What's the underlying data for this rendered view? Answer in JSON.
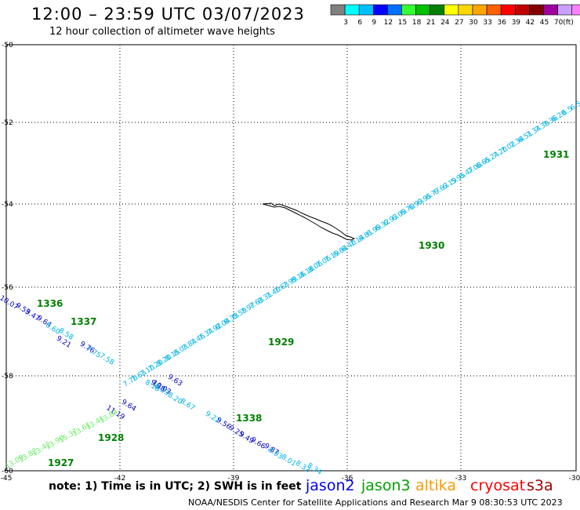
{
  "header": {
    "title": "12:00 – 23:59 UTC 03/07/2023",
    "subtitle": "12 hour collection of altimeter wave heights"
  },
  "legend": {
    "unit": "(ft)",
    "colors": [
      "#808080",
      "#00ffff",
      "#00bfff",
      "#0000ff",
      "#0070ff",
      "#33ff33",
      "#00c000",
      "#008000",
      "#ffff00",
      "#ffd700",
      "#ffa500",
      "#ff6000",
      "#ff0000",
      "#c00000",
      "#800000",
      "#a000a0",
      "#c8a0ff",
      "#ff80ff",
      "#000000"
    ],
    "labels": [
      "3",
      "6",
      "9",
      "12",
      "15",
      "18",
      "21",
      "24",
      "27",
      "30",
      "33",
      "36",
      "39",
      "42",
      "45",
      "70"
    ]
  },
  "map": {
    "lon_ticks": [
      "-45",
      "-42",
      "-39",
      "-36",
      "-33",
      "-30"
    ],
    "lat_ticks": [
      "-50",
      "-52",
      "-54",
      "-56",
      "-58",
      "-60"
    ],
    "tracks": [
      {
        "satellite": "jason3",
        "color": "#00b4e6",
        "labels": [
          "7.70",
          "7.63",
          "7.10",
          "7.20",
          "8.20",
          "8.15",
          "8.03",
          "7.84",
          "7.46",
          "7.34",
          "7.92",
          "8.04",
          "8.33",
          "8.59",
          "7.97",
          "7.63",
          "8.31",
          "7.40",
          "7.63",
          "7.99",
          "8.16",
          "8.18",
          "8.06",
          "7.06",
          "7.19",
          "6.84",
          "6.40",
          "7.14",
          "6.81",
          "6.99",
          "6.32",
          "6.93",
          "6.09",
          "6.70",
          "6.93",
          "6.95",
          "6.77",
          "6.63",
          "6.19",
          "5.95",
          "6.47",
          "7.08",
          "6.65",
          "6.24",
          "7.20",
          "7.02",
          "7.34",
          "6.51",
          "7.34",
          "7.39",
          "7.36",
          "6.20",
          "6.5",
          "6.5"
        ]
      },
      {
        "satellite": "jason2",
        "color": "#0000c8",
        "labels": [
          "10.07",
          "9.53",
          "9.47",
          "9.64",
          "9.21",
          "9.76",
          "9.63",
          "9.38",
          "10.03",
          "9.64",
          "11.19",
          "9.56",
          "9.25",
          "9.49",
          "9.66",
          "9.87"
        ]
      },
      {
        "satellite": "jason3",
        "color": "#00b4e6",
        "labels": [
          "8.60",
          "8.58",
          "7.75",
          "7.58",
          "8.16",
          "8.33",
          "8.20",
          "8.67",
          "9.22",
          "8.93",
          "8.01",
          "8.32",
          "8.34"
        ]
      },
      {
        "satellite": "jason3",
        "color": "#66ee66",
        "labels": [
          "13.09",
          "13.82",
          "13.42",
          "13.90",
          "15.37",
          "13.61",
          "13.41",
          "13.84"
        ]
      }
    ],
    "time_labels": [
      "1336",
      "1337",
      "1929",
      "1930",
      "1931",
      "1338",
      "1928",
      "1927"
    ]
  },
  "note": "note:  1) Time is in UTC;  2) SWH is in feet",
  "satellites": [
    {
      "name": "jason2",
      "color": "#0000ee"
    },
    {
      "name": "jason3",
      "color": "#00a000"
    },
    {
      "name": "altika",
      "color": "#ff9900"
    },
    {
      "name": "cryosat",
      "color": "#ff0000"
    },
    {
      "name": "s3a",
      "color": "#a00000"
    }
  ],
  "footer": "NOAA/NESDIS Center for Satellite Applications and Research    Mar  9 08:30:53 UTC 2023"
}
